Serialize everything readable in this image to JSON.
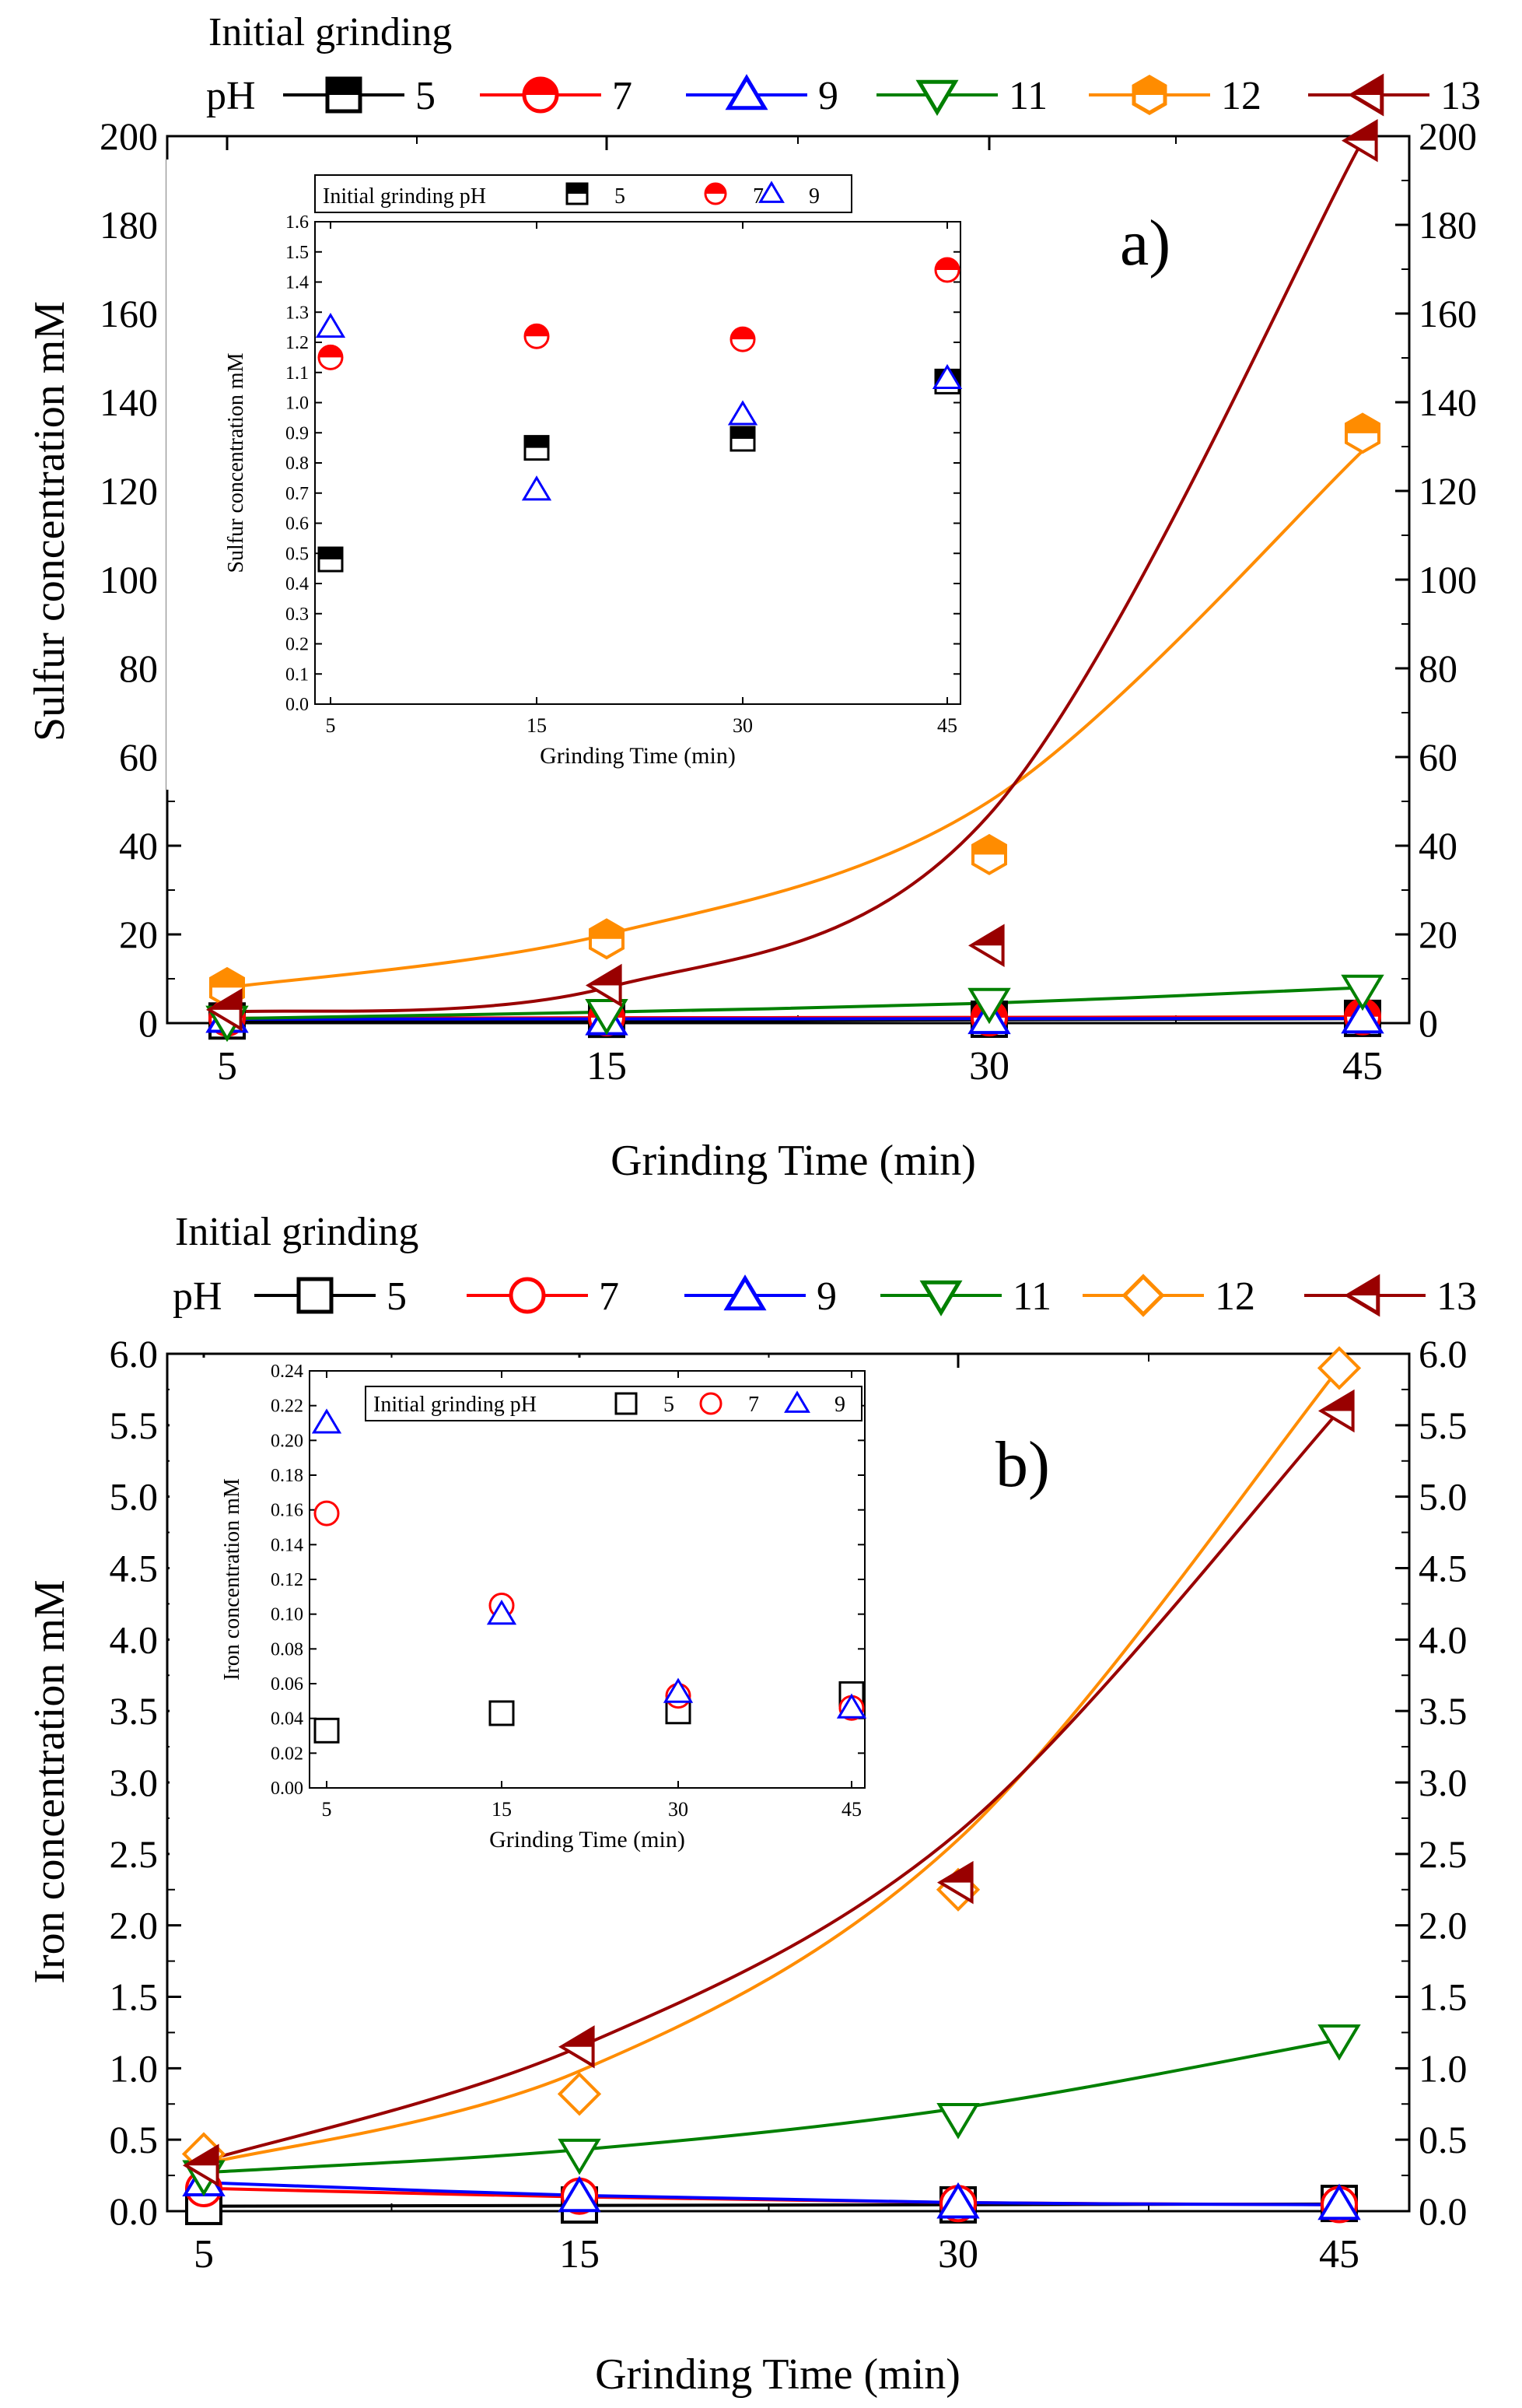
{
  "chart_data": [
    {
      "panel": "a)",
      "type": "scatter",
      "title": "",
      "legend_title": "Initial grinding",
      "legend_prefix": "pH",
      "xlabel": "Grinding Time (min)",
      "ylabel": "Sulfur concentration  mM",
      "x": [
        5,
        15,
        30,
        45
      ],
      "x_tick_labels": [
        "5",
        "15",
        "30",
        "45"
      ],
      "ylim": [
        0,
        200
      ],
      "y_ticks": [
        0,
        20,
        40,
        60,
        80,
        100,
        120,
        140,
        160,
        180,
        200
      ],
      "series": [
        {
          "name": "5",
          "color": "#000000",
          "marker": "square-half",
          "values": [
            0.48,
            0.85,
            0.88,
            1.07
          ],
          "fit": [
            0.3,
            0.5,
            0.75,
            1.0
          ]
        },
        {
          "name": "7",
          "color": "#ff0000",
          "marker": "circle-half",
          "values": [
            1.15,
            1.22,
            1.21,
            1.44
          ],
          "fit": [
            1.1,
            1.2,
            1.3,
            1.4
          ]
        },
        {
          "name": "9",
          "color": "#0000ff",
          "marker": "triangle-up",
          "values": [
            1.25,
            0.71,
            0.96,
            1.08
          ],
          "fit": [
            0.9,
            0.95,
            1.0,
            1.05
          ]
        },
        {
          "name": "11",
          "color": "#008000",
          "marker": "triangle-down",
          "values": [
            0.5,
            2.0,
            4.5,
            7.5
          ],
          "fit": [
            1.0,
            2.5,
            4.5,
            8.0
          ]
        },
        {
          "name": "12",
          "color": "#ff8c00",
          "marker": "hexagon-half",
          "values": [
            8.0,
            19.0,
            38.0,
            133.0
          ],
          "fit": [
            8.0,
            20.0,
            50.0,
            129.0
          ]
        },
        {
          "name": "13",
          "color": "#990000",
          "marker": "triangle-left",
          "values": [
            3.0,
            8.5,
            17.5,
            199.0
          ],
          "fit": [
            2.5,
            8.0,
            47.0,
            199.0
          ]
        }
      ],
      "inset": {
        "legend_title": "Initial grinding pH",
        "xlabel": "Grinding Time (min)",
        "ylabel": "Sulfur concentration   mM",
        "ylim": [
          0,
          1.6
        ],
        "y_ticks": [
          0.0,
          0.1,
          0.2,
          0.3,
          0.4,
          0.5,
          0.6,
          0.7,
          0.8,
          0.9,
          1.0,
          1.1,
          1.2,
          1.3,
          1.4,
          1.5,
          1.6
        ],
        "y_tick_labels": [
          "0.0",
          "0.1",
          "0.2",
          "0.3",
          "0.4",
          "0.5",
          "0.6",
          "0.7",
          "0.8",
          "0.9",
          "1.0",
          "1.1",
          "1.2",
          "1.3",
          "1.4",
          "1.5",
          "1.6"
        ],
        "series_names": [
          "5",
          "7",
          "9"
        ]
      }
    },
    {
      "panel": "b)",
      "type": "scatter",
      "title": "",
      "legend_title": "Initial grinding",
      "legend_prefix": "pH",
      "xlabel": "Grinding Time (min)",
      "ylabel": "Iron concentration mM",
      "x": [
        5,
        15,
        30,
        45
      ],
      "x_tick_labels": [
        "5",
        "15",
        "30",
        "45"
      ],
      "ylim": [
        0,
        6.0
      ],
      "y_ticks": [
        0.0,
        0.5,
        1.0,
        1.5,
        2.0,
        2.5,
        3.0,
        3.5,
        4.0,
        4.5,
        5.0,
        5.5,
        6.0
      ],
      "y_tick_labels": [
        "0.0",
        "0.5",
        "1.0",
        "1.5",
        "2.0",
        "2.5",
        "3.0",
        "3.5",
        "4.0",
        "4.5",
        "5.0",
        "5.5",
        "6.0"
      ],
      "series": [
        {
          "name": "5",
          "color": "#000000",
          "marker": "square",
          "values": [
            0.033,
            0.043,
            0.044,
            0.054
          ],
          "fit": [
            0.035,
            0.04,
            0.045,
            0.05
          ]
        },
        {
          "name": "7",
          "color": "#ff0000",
          "marker": "circle",
          "values": [
            0.158,
            0.105,
            0.053,
            0.046
          ],
          "fit": [
            0.16,
            0.1,
            0.06,
            0.045
          ]
        },
        {
          "name": "9",
          "color": "#0000ff",
          "marker": "triangle-up",
          "values": [
            0.21,
            0.1,
            0.055,
            0.046
          ],
          "fit": [
            0.2,
            0.11,
            0.06,
            0.045
          ]
        },
        {
          "name": "11",
          "color": "#008000",
          "marker": "triangle-down",
          "values": [
            0.25,
            0.4,
            0.65,
            1.2
          ],
          "fit": [
            0.27,
            0.43,
            0.72,
            1.2
          ]
        },
        {
          "name": "12",
          "color": "#ff8c00",
          "marker": "diamond",
          "values": [
            0.4,
            0.82,
            2.25,
            5.9
          ],
          "fit": [
            0.33,
            0.98,
            2.6,
            5.9
          ]
        },
        {
          "name": "13",
          "color": "#990000",
          "marker": "triangle-left",
          "values": [
            0.32,
            1.15,
            2.3,
            5.6
          ],
          "fit": [
            0.35,
            1.15,
            2.65,
            5.6
          ]
        }
      ],
      "inset": {
        "legend_title": "Initial grinding pH",
        "xlabel": "Grinding Time (min)",
        "ylabel": "Iron concentration mM",
        "ylim": [
          0,
          0.24
        ],
        "y_ticks": [
          0.0,
          0.02,
          0.04,
          0.06,
          0.08,
          0.1,
          0.12,
          0.14,
          0.16,
          0.18,
          0.2,
          0.22,
          0.24
        ],
        "y_tick_labels": [
          "0.00",
          "0.02",
          "0.04",
          "0.06",
          "0.08",
          "0.10",
          "0.12",
          "0.14",
          "0.16",
          "0.18",
          "0.20",
          "0.22",
          "0.24"
        ],
        "series_names": [
          "5",
          "7",
          "9"
        ]
      }
    }
  ]
}
